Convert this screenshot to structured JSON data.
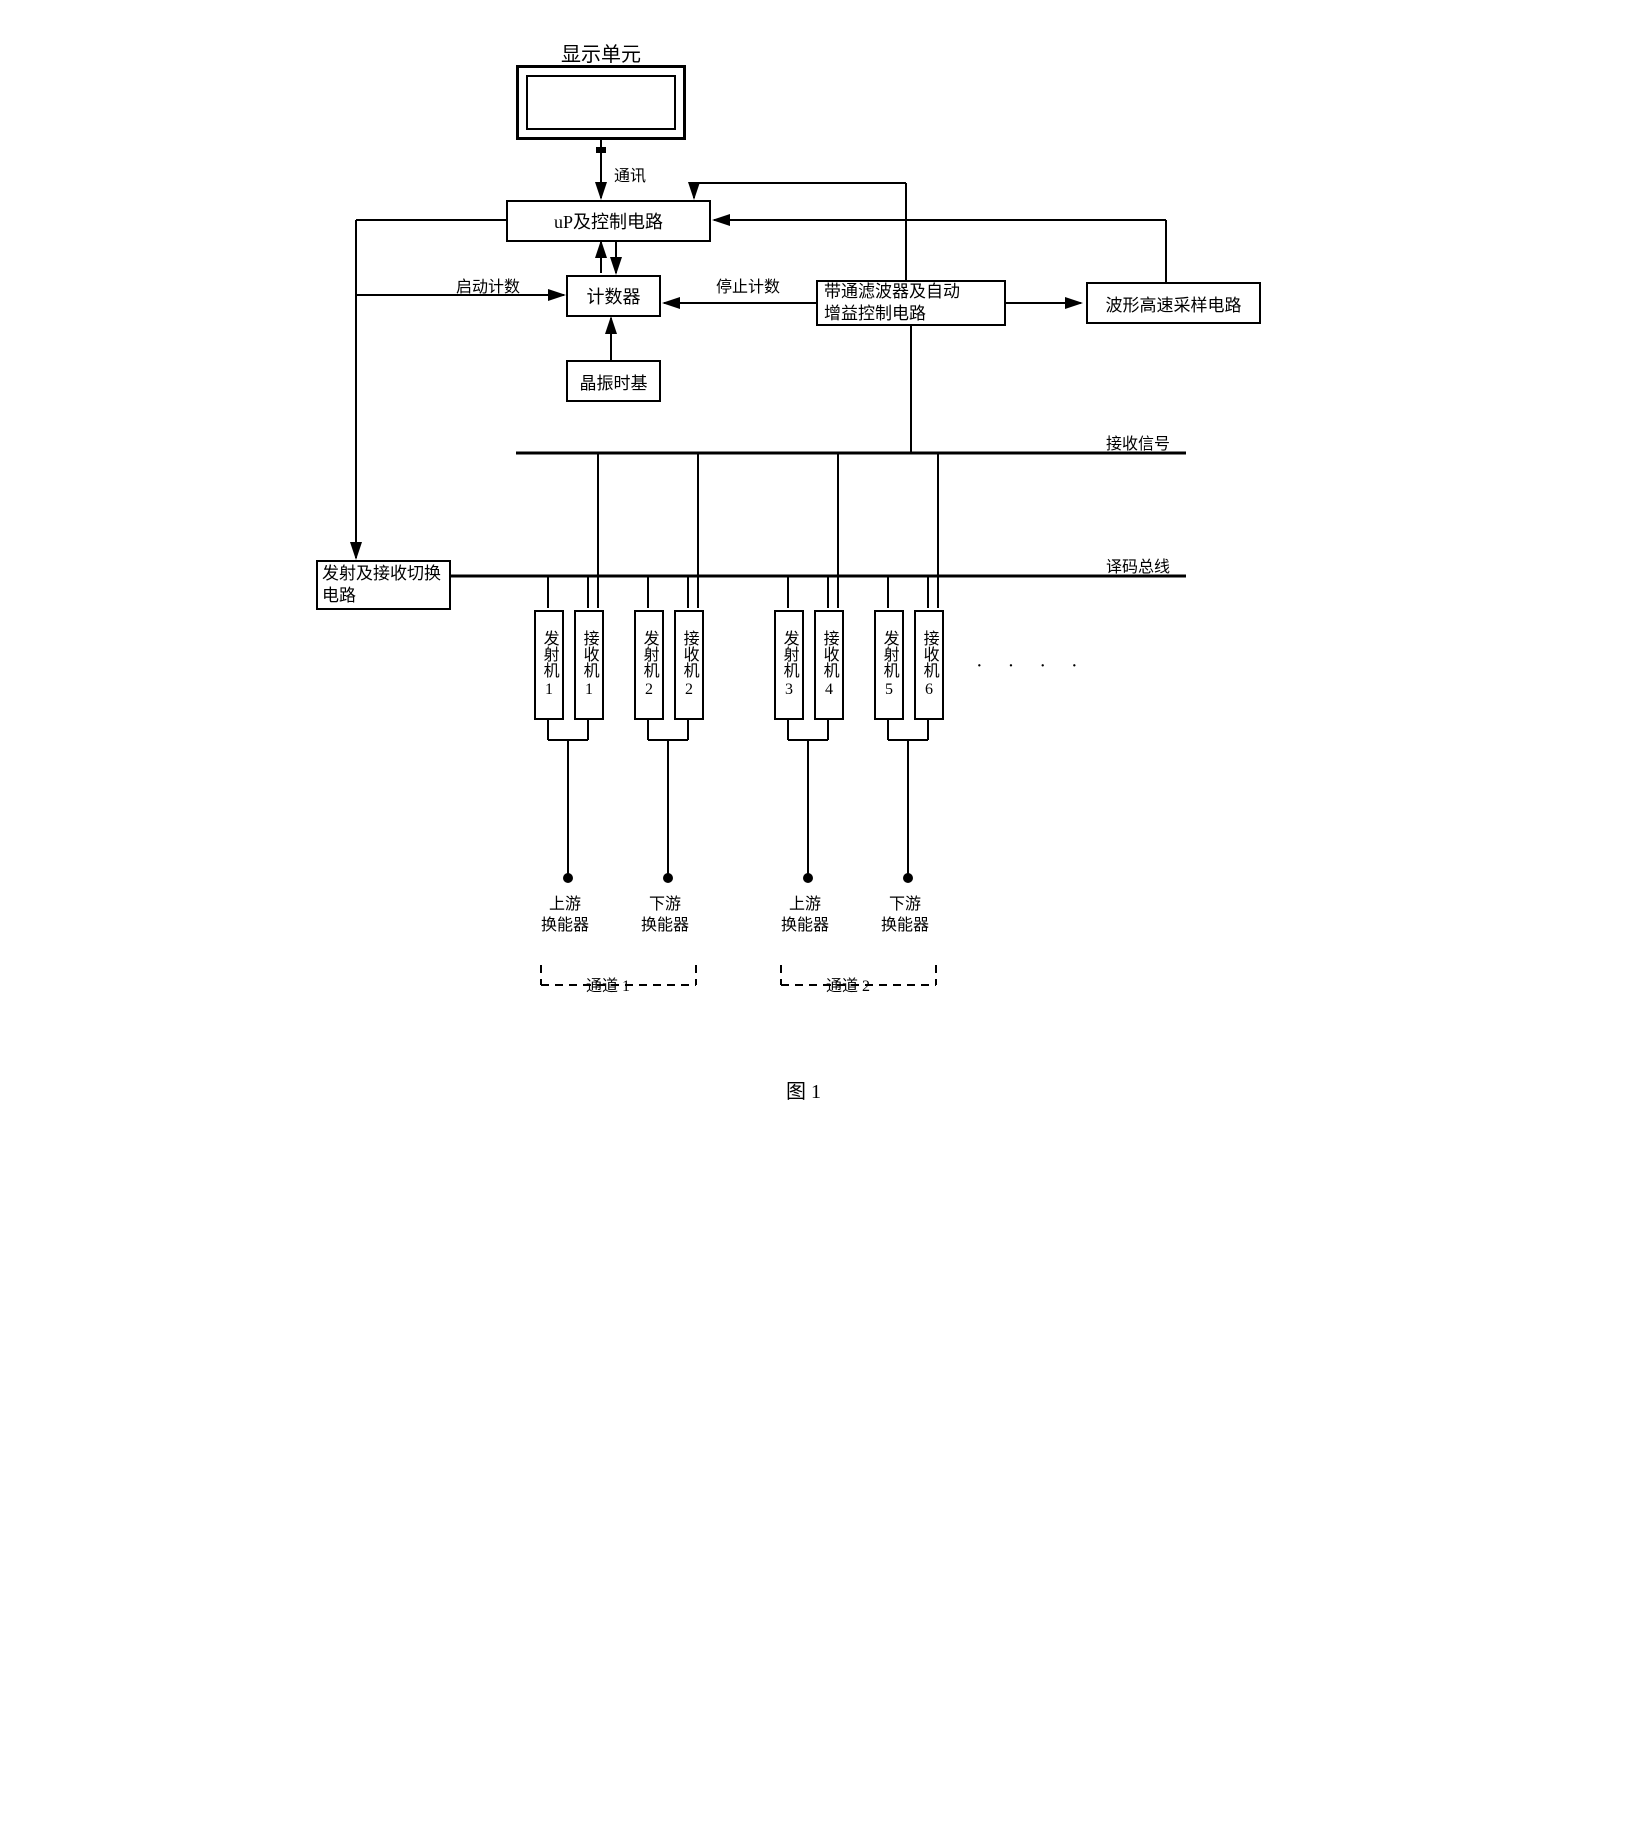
{
  "colors": {
    "stroke": "#000000",
    "background": "#ffffff",
    "strokeWidth": 2,
    "busWidth": 3
  },
  "fontSizes": {
    "label": 18,
    "boxText": 17,
    "small": 16,
    "caption": 20
  },
  "display": {
    "title": "显示单元",
    "commLabel": "通讯"
  },
  "blocks": {
    "up": "uP及控制电路",
    "counter": "计数器",
    "startCount": "启动计数",
    "stopCount": "停止计数",
    "crystal": "晶振时基",
    "filter_l1": "带通滤波器及自动",
    "filter_l2": "增益控制电路",
    "sampler": "波形高速采样电路",
    "txrxSwitch_l1": "发射及接收切换",
    "txrxSwitch_l2": "电路",
    "receiveSignal": "接收信号",
    "decodeBus": "译码总线"
  },
  "units": {
    "tx": "发射机",
    "rx": "接收机",
    "items": [
      {
        "type": "tx",
        "num": "1"
      },
      {
        "type": "rx",
        "num": "1"
      },
      {
        "type": "tx",
        "num": "2"
      },
      {
        "type": "rx",
        "num": "2"
      },
      {
        "type": "tx",
        "num": "3"
      },
      {
        "type": "rx",
        "num": "4"
      },
      {
        "type": "tx",
        "num": "5"
      },
      {
        "type": "rx",
        "num": "6"
      }
    ]
  },
  "transducers": {
    "upstream": "上游",
    "downstream": "下游",
    "suffix": "换能器",
    "items": [
      {
        "pos": "upstream"
      },
      {
        "pos": "downstream"
      },
      {
        "pos": "upstream"
      },
      {
        "pos": "downstream"
      }
    ]
  },
  "channels": {
    "label": "通道",
    "items": [
      "1",
      "2"
    ]
  },
  "caption": "图 1",
  "ellipsis": "· · · ·"
}
